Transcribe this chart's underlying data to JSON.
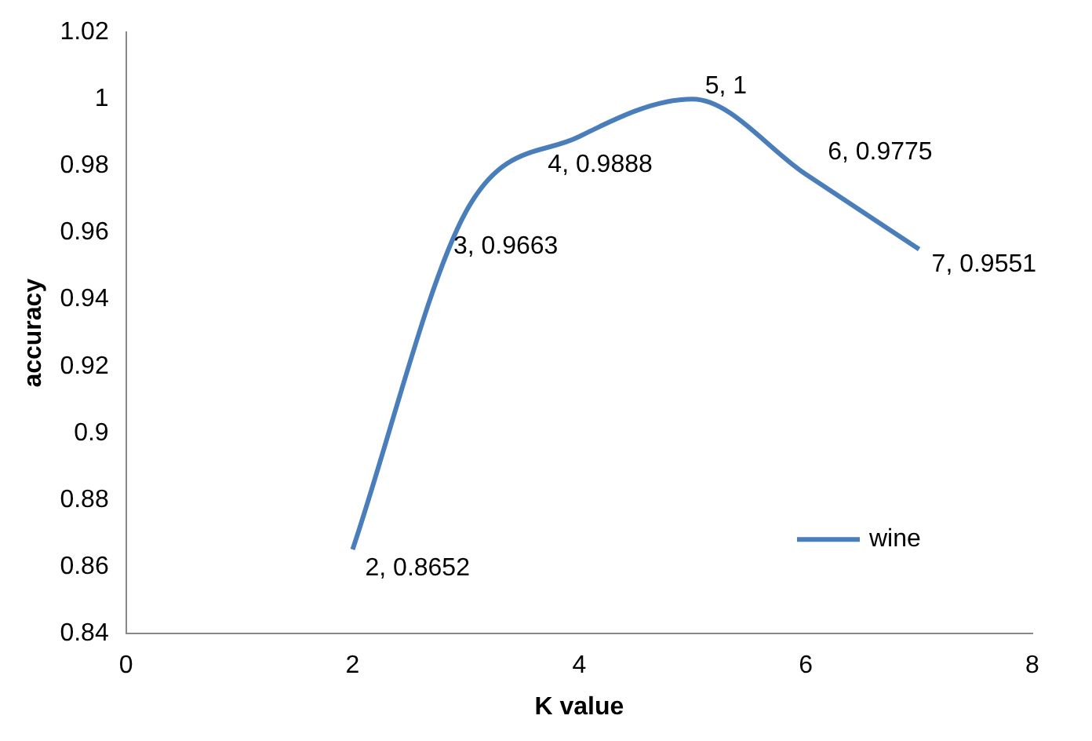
{
  "chart_data": {
    "type": "line",
    "xlabel": "K value",
    "ylabel": "accuracy",
    "xlim": [
      0,
      8
    ],
    "xticks": [
      0,
      2,
      4,
      6,
      8
    ],
    "ylim": [
      0.84,
      1.02
    ],
    "yticks": [
      0.84,
      0.86,
      0.88,
      0.9,
      0.92,
      0.94,
      0.96,
      0.98,
      1,
      1.02
    ],
    "grid": false,
    "legend": "bottom right",
    "marker": "none",
    "series": [
      {
        "name": "wine",
        "color": "#4a7ebb",
        "x": [
          2,
          3,
          4,
          5,
          6,
          7
        ],
        "values": [
          0.8652,
          0.9663,
          0.9888,
          1,
          0.9775,
          0.9551
        ],
        "value_labels": [
          "2, 0.8652",
          "3, 0.9663",
          "4, 0.9888",
          "5, 1",
          "6, 0.9775",
          "7, 0.9551"
        ]
      }
    ]
  }
}
